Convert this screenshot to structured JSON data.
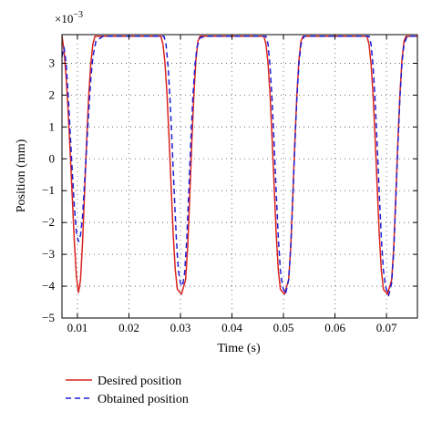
{
  "chart_data": {
    "type": "line",
    "xlabel": "Time (s)",
    "ylabel": "Position (mm)",
    "y_multiplier_base": "×10",
    "y_multiplier_exponent": "−3",
    "xlim": [
      0.007,
      0.076
    ],
    "ylim": [
      -5,
      3.9
    ],
    "x_ticks": [
      0.01,
      0.02,
      0.03,
      0.04,
      0.05,
      0.06,
      0.07
    ],
    "x_tick_labels": [
      "0.01",
      "0.02",
      "0.03",
      "0.04",
      "0.05",
      "0.06",
      "0.07"
    ],
    "y_ticks": [
      -5,
      -4,
      -3,
      -2,
      -1,
      0,
      1,
      2,
      3
    ],
    "y_tick_labels": [
      "−5",
      "−4",
      "−3",
      "−2",
      "−1",
      "0",
      "1",
      "2",
      "3"
    ],
    "grid": true,
    "legend_position": "below",
    "series": [
      {
        "name": "Desired position",
        "color": "#d9231f",
        "dash": "solid",
        "points": [
          [
            0.007,
            3.85
          ],
          [
            0.0074,
            3.4
          ],
          [
            0.0078,
            2.6
          ],
          [
            0.0082,
            1.5
          ],
          [
            0.0086,
            0.2
          ],
          [
            0.009,
            -1.2
          ],
          [
            0.0094,
            -2.6
          ],
          [
            0.0098,
            -3.7
          ],
          [
            0.0102,
            -4.2
          ],
          [
            0.0106,
            -3.8
          ],
          [
            0.011,
            -2.6
          ],
          [
            0.0114,
            -1.0
          ],
          [
            0.0118,
            0.6
          ],
          [
            0.0122,
            2.0
          ],
          [
            0.0126,
            3.0
          ],
          [
            0.013,
            3.6
          ],
          [
            0.0134,
            3.85
          ],
          [
            0.0262,
            3.85
          ],
          [
            0.0266,
            3.6
          ],
          [
            0.027,
            3.0
          ],
          [
            0.0274,
            2.0
          ],
          [
            0.0278,
            0.6
          ],
          [
            0.0282,
            -0.9
          ],
          [
            0.0286,
            -2.4
          ],
          [
            0.029,
            -3.5
          ],
          [
            0.0294,
            -4.1
          ],
          [
            0.0302,
            -4.25
          ],
          [
            0.031,
            -3.8
          ],
          [
            0.0314,
            -2.8
          ],
          [
            0.0318,
            -1.2
          ],
          [
            0.0322,
            0.5
          ],
          [
            0.0326,
            2.0
          ],
          [
            0.033,
            3.1
          ],
          [
            0.0334,
            3.7
          ],
          [
            0.0338,
            3.85
          ],
          [
            0.0462,
            3.85
          ],
          [
            0.0466,
            3.6
          ],
          [
            0.047,
            3.0
          ],
          [
            0.0474,
            2.0
          ],
          [
            0.0478,
            0.6
          ],
          [
            0.0482,
            -0.9
          ],
          [
            0.0486,
            -2.4
          ],
          [
            0.049,
            -3.5
          ],
          [
            0.0494,
            -4.1
          ],
          [
            0.0502,
            -4.25
          ],
          [
            0.051,
            -3.8
          ],
          [
            0.0514,
            -2.8
          ],
          [
            0.0518,
            -1.2
          ],
          [
            0.0522,
            0.5
          ],
          [
            0.0526,
            2.0
          ],
          [
            0.053,
            3.1
          ],
          [
            0.0534,
            3.7
          ],
          [
            0.0538,
            3.85
          ],
          [
            0.0662,
            3.85
          ],
          [
            0.0666,
            3.6
          ],
          [
            0.067,
            3.0
          ],
          [
            0.0674,
            2.0
          ],
          [
            0.0678,
            0.6
          ],
          [
            0.0682,
            -0.9
          ],
          [
            0.0686,
            -2.4
          ],
          [
            0.069,
            -3.5
          ],
          [
            0.0694,
            -4.1
          ],
          [
            0.0702,
            -4.25
          ],
          [
            0.071,
            -3.8
          ],
          [
            0.0714,
            -2.8
          ],
          [
            0.0718,
            -1.2
          ],
          [
            0.0722,
            0.5
          ],
          [
            0.0726,
            2.0
          ],
          [
            0.073,
            3.1
          ],
          [
            0.0734,
            3.7
          ],
          [
            0.0738,
            3.85
          ],
          [
            0.076,
            3.85
          ]
        ]
      },
      {
        "name": "Obtained position",
        "color": "#1f1fd6",
        "dash": "6,4",
        "points": [
          [
            0.007,
            3.2
          ],
          [
            0.0074,
            3.5
          ],
          [
            0.0078,
            3.0
          ],
          [
            0.0082,
            2.0
          ],
          [
            0.0086,
            0.8
          ],
          [
            0.009,
            -0.4
          ],
          [
            0.0094,
            -1.5
          ],
          [
            0.0098,
            -2.3
          ],
          [
            0.0102,
            -2.6
          ],
          [
            0.0106,
            -2.4
          ],
          [
            0.011,
            -1.8
          ],
          [
            0.0114,
            -0.7
          ],
          [
            0.0118,
            0.4
          ],
          [
            0.0122,
            1.5
          ],
          [
            0.0126,
            2.5
          ],
          [
            0.013,
            3.2
          ],
          [
            0.0136,
            3.7
          ],
          [
            0.015,
            3.85
          ],
          [
            0.0268,
            3.85
          ],
          [
            0.0272,
            3.6
          ],
          [
            0.0276,
            2.9
          ],
          [
            0.028,
            1.8
          ],
          [
            0.0284,
            0.4
          ],
          [
            0.0288,
            -1.1
          ],
          [
            0.0292,
            -2.5
          ],
          [
            0.0296,
            -3.5
          ],
          [
            0.03,
            -3.9
          ],
          [
            0.0304,
            -4.0
          ],
          [
            0.0308,
            -3.6
          ],
          [
            0.0312,
            -2.6
          ],
          [
            0.0316,
            -1.1
          ],
          [
            0.032,
            0.5
          ],
          [
            0.0324,
            1.9
          ],
          [
            0.0328,
            2.9
          ],
          [
            0.0332,
            3.5
          ],
          [
            0.0338,
            3.8
          ],
          [
            0.035,
            3.85
          ],
          [
            0.0466,
            3.85
          ],
          [
            0.047,
            3.6
          ],
          [
            0.0474,
            2.9
          ],
          [
            0.0478,
            1.8
          ],
          [
            0.0482,
            0.4
          ],
          [
            0.0486,
            -1.1
          ],
          [
            0.049,
            -2.5
          ],
          [
            0.0494,
            -3.5
          ],
          [
            0.0498,
            -4.0
          ],
          [
            0.0504,
            -4.25
          ],
          [
            0.051,
            -3.8
          ],
          [
            0.0514,
            -2.8
          ],
          [
            0.0518,
            -1.3
          ],
          [
            0.0522,
            0.4
          ],
          [
            0.0526,
            1.9
          ],
          [
            0.053,
            3.0
          ],
          [
            0.0534,
            3.6
          ],
          [
            0.054,
            3.85
          ],
          [
            0.0666,
            3.85
          ],
          [
            0.067,
            3.6
          ],
          [
            0.0674,
            2.9
          ],
          [
            0.0678,
            1.8
          ],
          [
            0.0682,
            0.4
          ],
          [
            0.0686,
            -1.1
          ],
          [
            0.069,
            -2.5
          ],
          [
            0.0694,
            -3.5
          ],
          [
            0.0698,
            -4.0
          ],
          [
            0.0704,
            -4.3
          ],
          [
            0.071,
            -3.9
          ],
          [
            0.0714,
            -2.9
          ],
          [
            0.0718,
            -1.3
          ],
          [
            0.0722,
            0.4
          ],
          [
            0.0726,
            1.9
          ],
          [
            0.073,
            3.0
          ],
          [
            0.0734,
            3.6
          ],
          [
            0.074,
            3.85
          ],
          [
            0.076,
            3.85
          ]
        ]
      }
    ]
  }
}
